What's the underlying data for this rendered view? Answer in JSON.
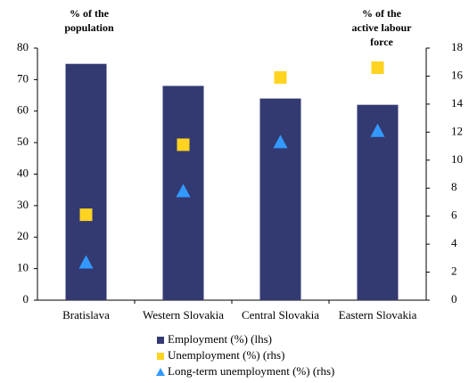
{
  "chart_data": {
    "type": "bar",
    "y_label": [
      "% of the",
      "population"
    ],
    "y2_label": [
      "% of the",
      "active labour",
      "force"
    ],
    "categories": [
      "Bratislava",
      "Western Slovakia",
      "Central Slovakia",
      "Eastern Slovakia"
    ],
    "series": [
      {
        "name": "Employment (%) (lhs)",
        "color": "#333a72",
        "marker": "bar",
        "values": [
          75,
          68,
          64,
          62
        ]
      },
      {
        "name": "Unemployment (%) (rhs)",
        "color": "#ffd320",
        "marker": "square",
        "axis": "y2",
        "values": [
          6.1,
          11.1,
          15.9,
          16.6
        ]
      },
      {
        "name": "Long-term unemployment (%) (rhs)",
        "color": "#3399ff",
        "marker": "triangle",
        "axis": "y2",
        "values": [
          2.7,
          7.8,
          11.3,
          12.1
        ]
      }
    ],
    "ylim": [
      0,
      80
    ],
    "yticks": [
      0,
      10,
      20,
      30,
      40,
      50,
      60,
      70,
      80
    ],
    "y2lim": [
      0,
      18
    ],
    "y2ticks": [
      0,
      2,
      4,
      6,
      8,
      10,
      12,
      14,
      16,
      18
    ],
    "grid": false,
    "legend": "bottom"
  }
}
